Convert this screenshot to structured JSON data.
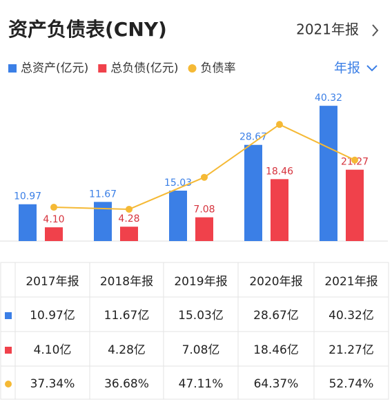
{
  "header": {
    "title": "资产负债表(CNY)",
    "period": "2021年报",
    "period_selector": "年报"
  },
  "chart_data": {
    "type": "bar",
    "categories": [
      "2017年报",
      "2018年报",
      "2019年报",
      "2020年报",
      "2021年报"
    ],
    "series": [
      {
        "name": "总资产(亿元)",
        "color": "#3b7fe6",
        "values": [
          10.97,
          11.67,
          15.03,
          28.67,
          40.32
        ]
      },
      {
        "name": "总负债(亿元)",
        "color": "#f0414b",
        "values": [
          4.1,
          4.28,
          7.08,
          18.46,
          21.27
        ],
        "value_labels": [
          "4.10",
          "4.28",
          "7.08",
          "18.46",
          "21.27"
        ]
      },
      {
        "name": "负债率",
        "type": "line",
        "axis": "y2",
        "color": "#f5b935",
        "values": [
          37.34,
          36.68,
          47.11,
          64.37,
          52.74
        ]
      }
    ],
    "ylim": [
      0,
      42
    ],
    "y2lim": [
      26.3,
      72.3
    ]
  },
  "table": {
    "rows": [
      [
        "10.97亿",
        "11.67亿",
        "15.03亿",
        "28.67亿",
        "40.32亿"
      ],
      [
        "4.10亿",
        "4.28亿",
        "7.08亿",
        "18.46亿",
        "21.27亿"
      ],
      [
        "37.34%",
        "36.68%",
        "47.11%",
        "64.37%",
        "52.74%"
      ]
    ]
  }
}
